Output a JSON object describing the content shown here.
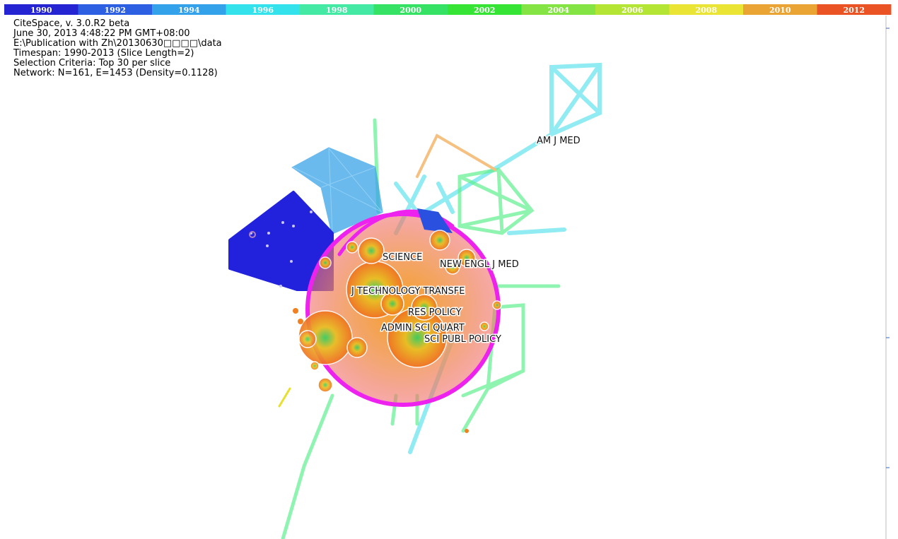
{
  "timeline": [
    "1990",
    "1992",
    "1994",
    "1996",
    "1998",
    "2000",
    "2002",
    "2004",
    "2006",
    "2008",
    "2010",
    "2012"
  ],
  "timeline_colors": [
    "#2424d2",
    "#2c5fe2",
    "#33a2ea",
    "#33e2ea",
    "#44eaa4",
    "#36e264",
    "#36e436",
    "#84e444",
    "#b4e434",
    "#eae434",
    "#eaa434",
    "#ea5424"
  ],
  "info": [
    "CiteSpace, v. 3.0.R2 beta",
    "June 30, 2013 4:48:22 PM GMT+08:00",
    "E:\\Publication with Zh\\20130630□□□□\\data",
    "Timespan: 1990-2013 (Slice Length=2)",
    "Selection Criteria: Top 30 per slice",
    "Network: N=161, E=1453 (Density=0.1128)"
  ],
  "labels": [
    "AM J MED",
    "SCIENCE",
    "NEW ENGL J MED",
    "J TECHNOLOGY TRANSFE",
    "RES POLICY",
    "ADMIN SCI QUART",
    "SCI PUBL POLICY"
  ]
}
